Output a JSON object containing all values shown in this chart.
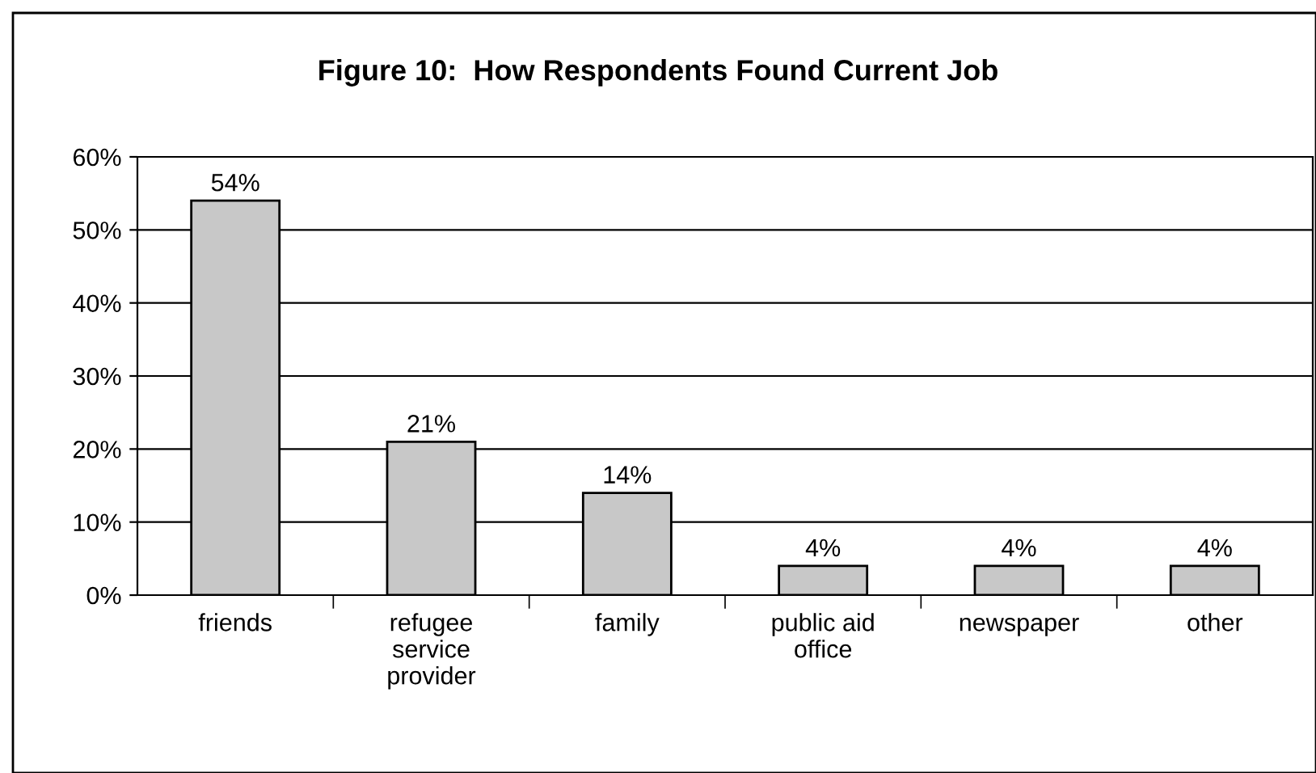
{
  "chart_data": {
    "type": "bar",
    "title": "Figure 10:  How Respondents Found Current Job",
    "categories": [
      "friends",
      "refugee\nservice\nprovider",
      "family",
      "public aid\noffice",
      "newspaper",
      "other"
    ],
    "values": [
      54,
      21,
      14,
      4,
      4,
      4
    ],
    "value_labels": [
      "54%",
      "21%",
      "14%",
      "4%",
      "4%",
      "4%"
    ],
    "color": "#c8c8c8",
    "ylim": [
      0,
      60
    ],
    "yticks": [
      {
        "value": 0,
        "label": "0%"
      },
      {
        "value": 10,
        "label": "10%"
      },
      {
        "value": 20,
        "label": "20%"
      },
      {
        "value": 30,
        "label": "30%"
      },
      {
        "value": 40,
        "label": "40%"
      },
      {
        "value": 50,
        "label": "50%"
      },
      {
        "value": 60,
        "label": "60%"
      }
    ],
    "grid": "y",
    "legend": false
  }
}
